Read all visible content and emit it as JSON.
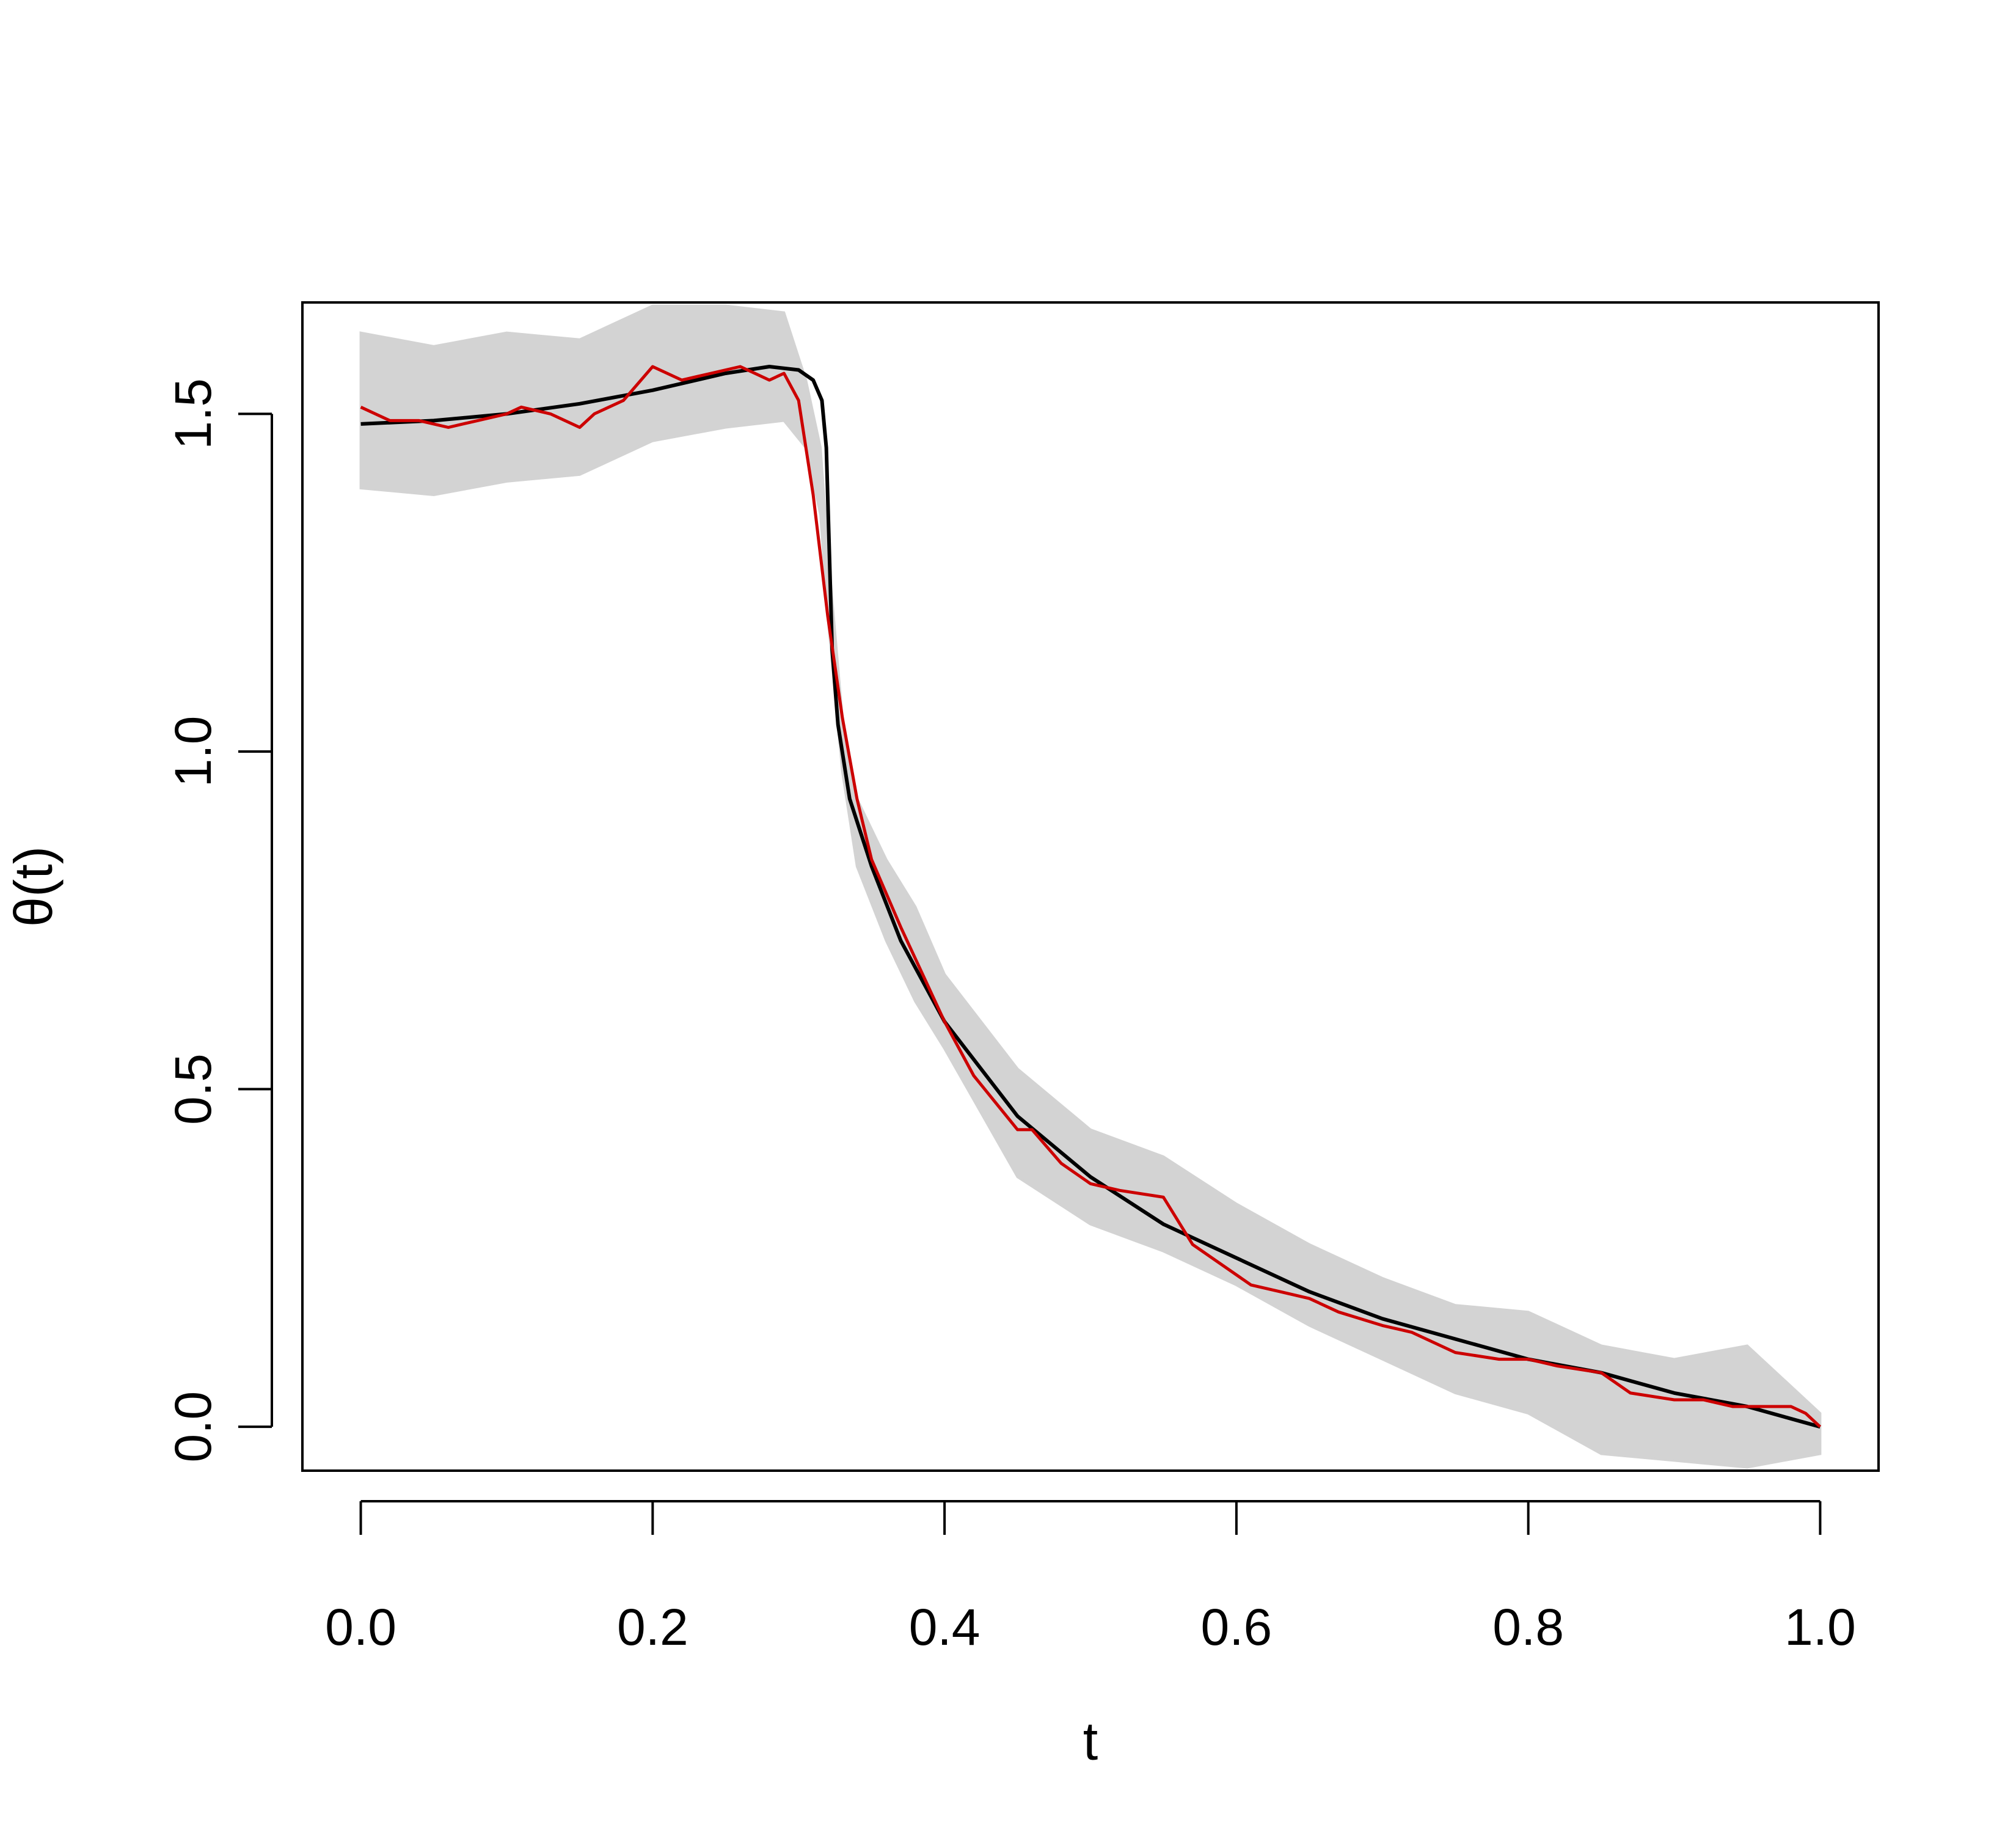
{
  "chart_data": {
    "type": "line",
    "title": "",
    "xlabel": "t",
    "ylabel": "θ(t)",
    "xlim": [
      -0.04,
      1.04
    ],
    "ylim": [
      -0.065,
      1.665
    ],
    "x_ticks": [
      {
        "value": 0.0,
        "label": "0.0"
      },
      {
        "value": 0.2,
        "label": "0.2"
      },
      {
        "value": 0.4,
        "label": "0.4"
      },
      {
        "value": 0.6,
        "label": "0.6"
      },
      {
        "value": 0.8,
        "label": "0.8"
      },
      {
        "value": 1.0,
        "label": "1.0"
      }
    ],
    "y_ticks": [
      {
        "value": 0.0,
        "label": "0.0"
      },
      {
        "value": 0.5,
        "label": "0.5"
      },
      {
        "value": 1.0,
        "label": "1.0"
      },
      {
        "value": 1.5,
        "label": "1.5"
      }
    ],
    "grid": false,
    "legend": "none",
    "colors": {
      "band": "#d3d3d3",
      "true_curve": "#000000",
      "estimate": "#cc0000"
    },
    "series": [
      {
        "role": "band",
        "x": [
          0.0,
          0.05,
          0.1,
          0.15,
          0.2,
          0.25,
          0.29,
          0.305,
          0.315,
          0.32,
          0.33,
          0.34,
          0.36,
          0.38,
          0.4,
          0.45,
          0.5,
          0.55,
          0.6,
          0.65,
          0.7,
          0.75,
          0.8,
          0.85,
          0.9,
          0.95,
          1.0
        ],
        "upper": [
          1.62,
          1.6,
          1.62,
          1.61,
          1.66,
          1.66,
          1.65,
          1.55,
          1.45,
          1.3,
          1.05,
          0.93,
          0.84,
          0.77,
          0.67,
          0.53,
          0.44,
          0.4,
          0.33,
          0.27,
          0.22,
          0.18,
          0.17,
          0.12,
          0.1,
          0.12,
          0.02
        ],
        "lower": [
          1.39,
          1.38,
          1.4,
          1.41,
          1.46,
          1.48,
          1.49,
          1.45,
          1.35,
          1.2,
          0.97,
          0.83,
          0.72,
          0.63,
          0.56,
          0.37,
          0.3,
          0.26,
          0.21,
          0.15,
          0.1,
          0.05,
          0.02,
          -0.04,
          -0.05,
          -0.06,
          -0.04
        ]
      },
      {
        "role": "true_curve",
        "x": [
          0.0,
          0.05,
          0.1,
          0.15,
          0.2,
          0.25,
          0.28,
          0.3,
          0.31,
          0.316,
          0.319,
          0.321,
          0.323,
          0.327,
          0.335,
          0.35,
          0.37,
          0.4,
          0.45,
          0.5,
          0.55,
          0.6,
          0.65,
          0.7,
          0.75,
          0.8,
          0.85,
          0.9,
          0.95,
          1.0
        ],
        "y": [
          1.485,
          1.49,
          1.5,
          1.515,
          1.535,
          1.56,
          1.57,
          1.565,
          1.55,
          1.52,
          1.45,
          1.3,
          1.15,
          1.04,
          0.93,
          0.83,
          0.72,
          0.6,
          0.46,
          0.37,
          0.3,
          0.25,
          0.2,
          0.16,
          0.13,
          0.1,
          0.08,
          0.05,
          0.03,
          0.0
        ]
      },
      {
        "role": "estimate",
        "x": [
          0.0,
          0.01,
          0.02,
          0.04,
          0.06,
          0.08,
          0.1,
          0.11,
          0.13,
          0.15,
          0.16,
          0.18,
          0.2,
          0.22,
          0.24,
          0.26,
          0.27,
          0.28,
          0.29,
          0.3,
          0.31,
          0.32,
          0.33,
          0.34,
          0.35,
          0.37,
          0.4,
          0.42,
          0.45,
          0.46,
          0.48,
          0.5,
          0.52,
          0.55,
          0.57,
          0.59,
          0.61,
          0.63,
          0.65,
          0.67,
          0.7,
          0.72,
          0.75,
          0.78,
          0.8,
          0.82,
          0.85,
          0.87,
          0.9,
          0.92,
          0.94,
          0.96,
          0.98,
          0.99,
          1.0
        ],
        "y": [
          1.51,
          1.5,
          1.49,
          1.49,
          1.48,
          1.49,
          1.5,
          1.51,
          1.5,
          1.48,
          1.5,
          1.52,
          1.57,
          1.55,
          1.56,
          1.57,
          1.56,
          1.55,
          1.56,
          1.52,
          1.38,
          1.2,
          1.05,
          0.93,
          0.84,
          0.74,
          0.6,
          0.52,
          0.44,
          0.44,
          0.39,
          0.36,
          0.35,
          0.34,
          0.27,
          0.24,
          0.21,
          0.2,
          0.19,
          0.17,
          0.15,
          0.14,
          0.11,
          0.1,
          0.1,
          0.09,
          0.08,
          0.05,
          0.04,
          0.04,
          0.03,
          0.03,
          0.03,
          0.02,
          0.0
        ]
      }
    ]
  }
}
